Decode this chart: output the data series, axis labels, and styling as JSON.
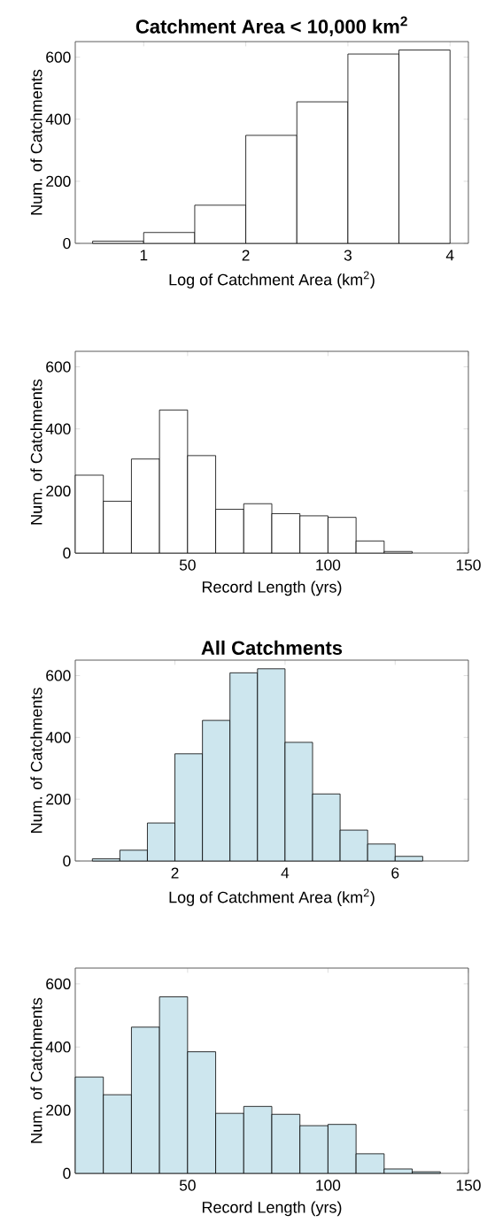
{
  "chart_data": [
    {
      "type": "histogram",
      "title": "Catchment Area < 10,000 km$^{2}$",
      "xlabel": "Log of Catchment Area (km$^{2}$)",
      "ylabel": "Num. of Catchments",
      "bins": [
        0.5,
        1,
        1.5,
        2,
        2.5,
        3,
        3.5,
        4
      ],
      "values": [
        7,
        35,
        123,
        348,
        456,
        610,
        623
      ],
      "color": "#ffffff",
      "xlim": [
        0.33,
        4.18
      ],
      "ylim": [
        0,
        650
      ],
      "xticks": [
        1,
        2,
        3,
        4
      ],
      "yticks": [
        0,
        200,
        400,
        600
      ]
    },
    {
      "type": "histogram",
      "xlabel": "Record Length (yrs)",
      "ylabel": "Num. of Catchments",
      "bins": [
        10,
        20,
        30,
        40,
        50,
        60,
        70,
        80,
        90,
        100,
        110,
        120,
        130
      ],
      "values": [
        251,
        167,
        303,
        461,
        314,
        141,
        159,
        127,
        120,
        115,
        39,
        5
      ],
      "color": "#ffffff",
      "xlim": [
        10,
        150
      ],
      "ylim": [
        0,
        650
      ],
      "xticks": [
        50,
        100,
        150
      ],
      "yticks": [
        0,
        200,
        400,
        600
      ]
    },
    {
      "type": "histogram",
      "title": "All Catchments",
      "xlabel": "Log of Catchment Area (km$^{2}$)",
      "ylabel": "Num. of Catchments",
      "bins": [
        0.5,
        1,
        1.5,
        2,
        2.5,
        3,
        3.5,
        4,
        4.5,
        5,
        5.5,
        6,
        6.5
      ],
      "values": [
        7,
        35,
        123,
        347,
        455,
        609,
        622,
        384,
        217,
        100,
        55,
        15
      ],
      "color": "#cde6ee",
      "xlim": [
        0.19,
        7.33
      ],
      "ylim": [
        0,
        650
      ],
      "xticks": [
        2,
        4,
        6
      ],
      "yticks": [
        0,
        200,
        400,
        600
      ]
    },
    {
      "type": "histogram",
      "xlabel": "Record Length (yrs)",
      "ylabel": "Num. of Catchments",
      "bins": [
        10,
        20,
        30,
        40,
        50,
        60,
        70,
        80,
        90,
        100,
        110,
        120,
        130,
        140
      ],
      "values": [
        305,
        249,
        463,
        559,
        385,
        190,
        212,
        187,
        151,
        155,
        62,
        14,
        5
      ],
      "color": "#cde6ee",
      "xlim": [
        10,
        150
      ],
      "ylim": [
        0,
        650
      ],
      "xticks": [
        50,
        100,
        150
      ],
      "yticks": [
        0,
        200,
        400,
        600
      ]
    }
  ]
}
